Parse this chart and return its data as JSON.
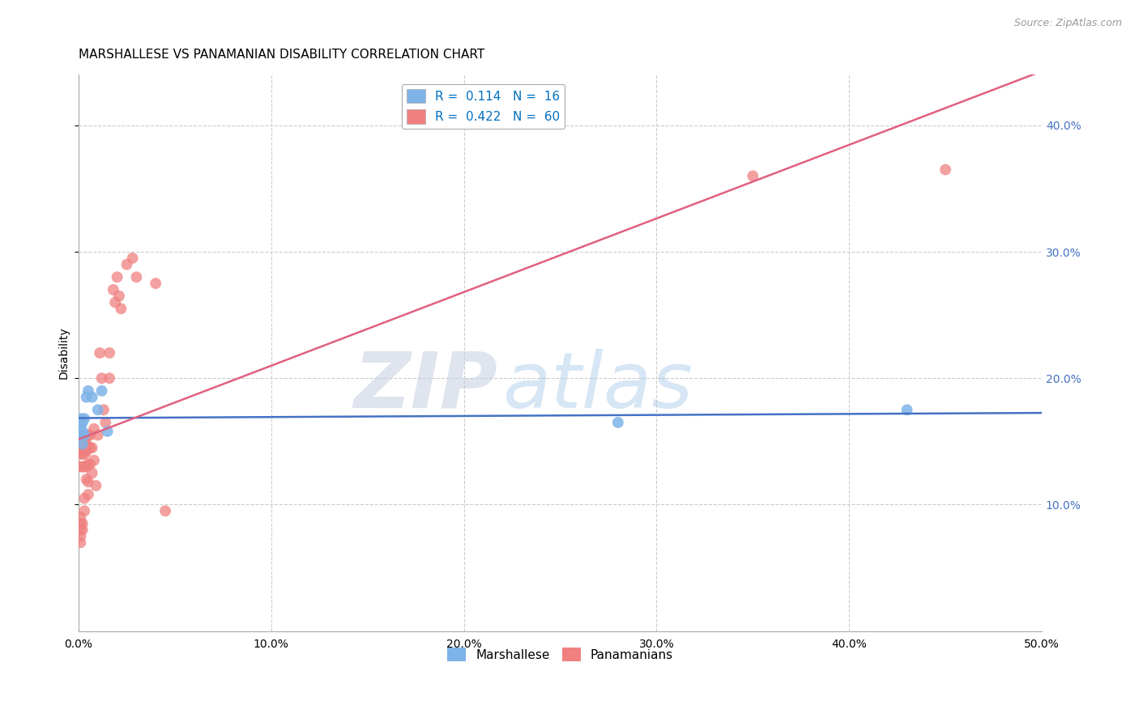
{
  "title": "MARSHALLESE VS PANAMANIAN DISABILITY CORRELATION CHART",
  "source": "Source: ZipAtlas.com",
  "ylabel": "Disability",
  "xlim": [
    0.0,
    0.5
  ],
  "ylim": [
    0.0,
    0.44
  ],
  "xticks": [
    0.0,
    0.1,
    0.2,
    0.3,
    0.4,
    0.5
  ],
  "yticks": [
    0.1,
    0.2,
    0.3,
    0.4
  ],
  "marshallese_x": [
    0.001,
    0.001,
    0.001,
    0.002,
    0.002,
    0.002,
    0.003,
    0.003,
    0.004,
    0.005,
    0.007,
    0.01,
    0.012,
    0.015,
    0.28,
    0.43
  ],
  "marshallese_y": [
    0.155,
    0.162,
    0.168,
    0.148,
    0.158,
    0.165,
    0.155,
    0.168,
    0.185,
    0.19,
    0.185,
    0.175,
    0.19,
    0.158,
    0.165,
    0.175
  ],
  "panamanian_x": [
    0.001,
    0.001,
    0.001,
    0.001,
    0.001,
    0.001,
    0.001,
    0.001,
    0.001,
    0.001,
    0.002,
    0.002,
    0.002,
    0.002,
    0.002,
    0.002,
    0.003,
    0.003,
    0.003,
    0.003,
    0.003,
    0.003,
    0.003,
    0.004,
    0.004,
    0.004,
    0.004,
    0.004,
    0.005,
    0.005,
    0.005,
    0.005,
    0.005,
    0.006,
    0.006,
    0.006,
    0.007,
    0.007,
    0.008,
    0.008,
    0.009,
    0.01,
    0.011,
    0.012,
    0.013,
    0.014,
    0.016,
    0.016,
    0.018,
    0.019,
    0.02,
    0.021,
    0.022,
    0.025,
    0.028,
    0.03,
    0.04,
    0.045,
    0.35,
    0.45
  ],
  "panamanian_y": [
    0.145,
    0.15,
    0.155,
    0.13,
    0.14,
    0.09,
    0.085,
    0.075,
    0.08,
    0.07,
    0.145,
    0.15,
    0.14,
    0.13,
    0.085,
    0.08,
    0.15,
    0.145,
    0.155,
    0.14,
    0.13,
    0.105,
    0.095,
    0.155,
    0.148,
    0.142,
    0.13,
    0.12,
    0.155,
    0.145,
    0.132,
    0.118,
    0.108,
    0.155,
    0.145,
    0.132,
    0.145,
    0.125,
    0.16,
    0.135,
    0.115,
    0.155,
    0.22,
    0.2,
    0.175,
    0.165,
    0.22,
    0.2,
    0.27,
    0.26,
    0.28,
    0.265,
    0.255,
    0.29,
    0.295,
    0.28,
    0.275,
    0.095,
    0.36,
    0.365
  ],
  "marshallese_R": 0.114,
  "marshallese_N": 16,
  "panamanian_R": 0.422,
  "panamanian_N": 60,
  "marshallese_color": "#7eb3e8",
  "panamanian_color": "#f08080",
  "marshallese_line_color": "#4472c4",
  "panamanian_line_color": "#e06080",
  "grid_color": "#cccccc",
  "background_color": "#ffffff",
  "watermark_zip": "ZIP",
  "watermark_atlas": "atlas",
  "title_fontsize": 11,
  "axis_label_fontsize": 10,
  "tick_fontsize": 10,
  "legend_fontsize": 11,
  "source_fontsize": 9
}
